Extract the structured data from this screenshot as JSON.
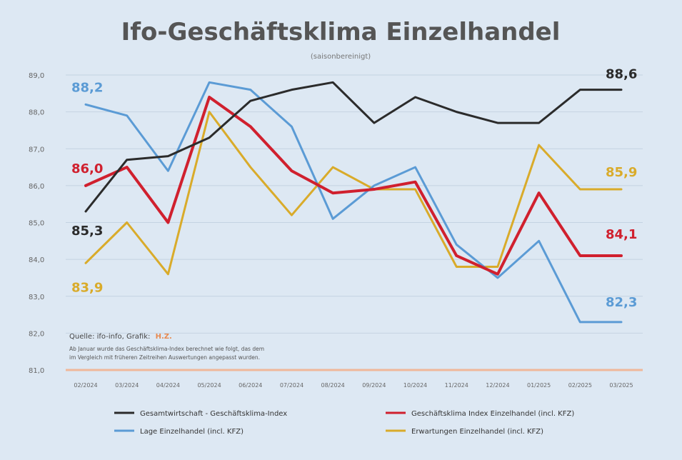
{
  "chart_data": {
    "type": "line",
    "title": "Ifo-Geschäftsklima Einzelhandel",
    "subtitle": "(saisonbereinigt)",
    "xlabel": "",
    "ylabel": "",
    "ylim": [
      81,
      89
    ],
    "y_ticks": [
      "81,0",
      "82,0",
      "83,0",
      "84,0",
      "85,0",
      "86,0",
      "87,0",
      "88,0",
      "89,0"
    ],
    "categories": [
      "02/2024",
      "03/2024",
      "04/2024",
      "05/2024",
      "06/2024",
      "07/2024",
      "08/2024",
      "09/2024",
      "10/2024",
      "11/2024",
      "12/2024",
      "01/2025",
      "02/2025",
      "03/2025"
    ],
    "series": [
      {
        "name": "Gesamtwirtschaft - Geschäftsklima-Index",
        "color": "#2b2b2b",
        "values": [
          85.3,
          86.7,
          86.8,
          87.3,
          88.3,
          88.6,
          88.8,
          87.7,
          88.4,
          88.0,
          87.7,
          87.7,
          88.6,
          88.6
        ],
        "label_first": "85,3",
        "label_last": "88,6"
      },
      {
        "name": "Geschäftsklima Index Einzelhandel (incl. KFZ)",
        "color": "#d0202e",
        "values": [
          86.0,
          86.5,
          85.0,
          88.4,
          87.6,
          86.4,
          85.8,
          85.9,
          86.1,
          84.1,
          83.6,
          85.8,
          84.1,
          84.1
        ],
        "label_first": "86,0",
        "label_last": "84,1"
      },
      {
        "name": "Lage Einzelhandel (incl. KFZ)",
        "color": "#5b9bd5",
        "values": [
          88.2,
          87.9,
          86.4,
          88.8,
          88.6,
          87.6,
          85.1,
          86.0,
          86.5,
          84.4,
          83.5,
          84.5,
          82.3,
          82.3
        ],
        "label_first": "88,2",
        "label_last": "82,3"
      },
      {
        "name": "Erwartungen Einzelhandel (incl. KFZ)",
        "color": "#d9ab2a",
        "values": [
          83.9,
          85.0,
          83.6,
          88.0,
          86.5,
          85.2,
          86.5,
          85.9,
          85.9,
          83.8,
          83.8,
          87.1,
          85.9,
          85.9
        ],
        "label_first": "83,9",
        "label_last": "85,9"
      }
    ],
    "source_line": "Quelle: ifo-info, Grafik:",
    "source_brand": "H.Z.",
    "note_line_1": "Ab Januar wurde das Geschäftsklima-Index berechnet wie folgt, das dem",
    "note_line_2": "im Vergleich mit früheren Zeitreihen Auswertungen angepasst wurden."
  },
  "colors": {
    "background": "#dde8f3",
    "grid": "#c4d3e2",
    "baseline": "#f0b79a",
    "tick_text": "#666666",
    "title_text": "#555555"
  }
}
